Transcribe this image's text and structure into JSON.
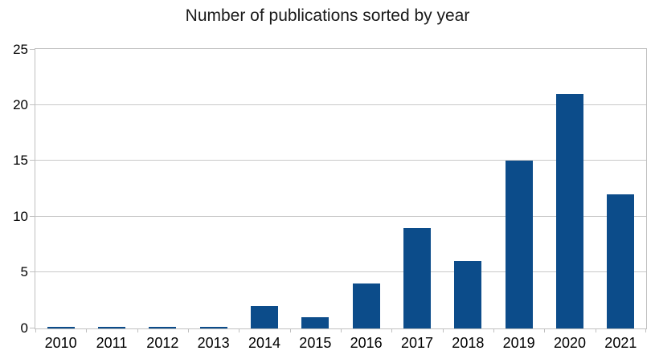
{
  "chart_data": {
    "type": "bar",
    "title": "Number of publications sorted by year",
    "categories": [
      "2010",
      "2011",
      "2012",
      "2013",
      "2014",
      "2015",
      "2016",
      "2017",
      "2018",
      "2019",
      "2020",
      "2021"
    ],
    "values": [
      0,
      0,
      0,
      0,
      2,
      1,
      4,
      9,
      6,
      15,
      21,
      12
    ],
    "xlabel": "",
    "ylabel": "",
    "ylim": [
      0,
      25
    ],
    "yticks": [
      0,
      5,
      10,
      15,
      20,
      25
    ],
    "grid": true,
    "legend_position": "none",
    "colors": {
      "bar": "#0c4c8a",
      "axis_line": "#c0c0c0",
      "gridline": "#c9c9c9",
      "text": "#000000",
      "background": "#ffffff"
    }
  }
}
